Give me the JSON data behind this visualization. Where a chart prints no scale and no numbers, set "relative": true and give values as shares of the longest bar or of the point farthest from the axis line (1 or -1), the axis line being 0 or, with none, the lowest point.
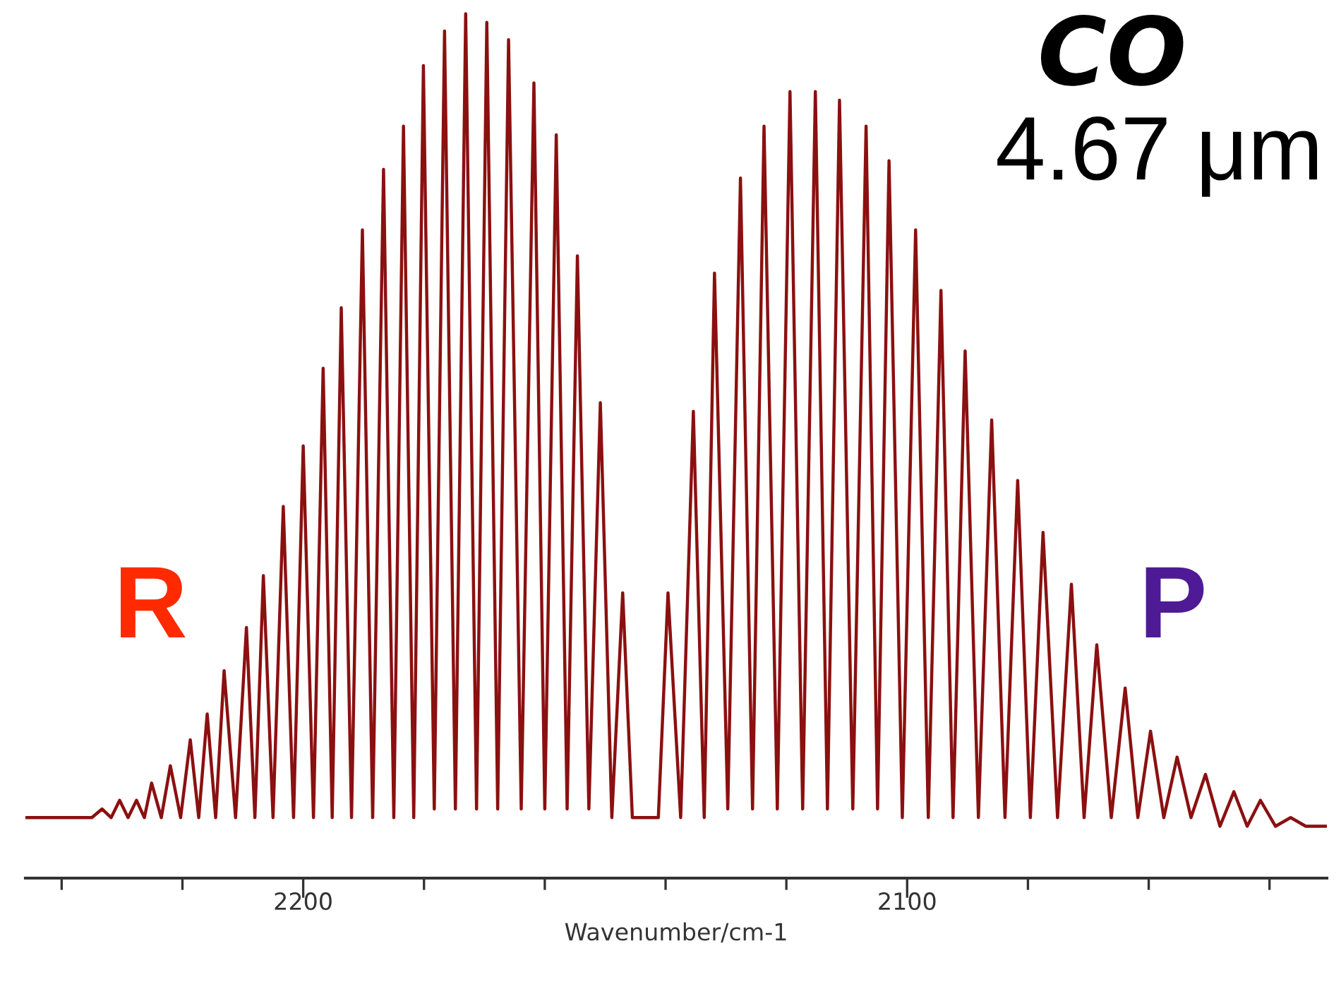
{
  "chart_data": {
    "type": "line",
    "title": "CO",
    "subtitle": "4.67 μm",
    "xlabel": "Wavenumber/cm-1",
    "relative": true,
    "xlim": [
      2246,
      2030.5
    ],
    "xticks": [
      {
        "value": 2240,
        "label": null
      },
      {
        "value": 2220,
        "label": null
      },
      2200,
      {
        "value": 2180,
        "label": null
      },
      {
        "value": 2160,
        "label": null
      },
      {
        "value": 2140,
        "label": null
      },
      {
        "value": 2120,
        "label": null
      },
      2100,
      {
        "value": 2080,
        "label": null
      },
      {
        "value": 2060,
        "label": null
      },
      {
        "value": 2040,
        "label": null
      }
    ],
    "annotations": [
      "R",
      "P"
    ],
    "x": [
      2246.0,
      2235.0,
      2233.3,
      2231.8,
      2230.4,
      2229.0,
      2227.6,
      2226.3,
      2225.1,
      2223.5,
      2222.0,
      2220.3,
      2218.7,
      2217.3,
      2215.9,
      2214.5,
      2213.1,
      2211.2,
      2209.4,
      2208.0,
      2206.6,
      2205.0,
      2203.3,
      2201.6,
      2200.0,
      2198.3,
      2196.7,
      2195.2,
      2193.7,
      2192.0,
      2190.2,
      2188.5,
      2186.7,
      2185.0,
      2183.4,
      2181.7,
      2180.1,
      2178.3,
      2176.6,
      2174.8,
      2173.1,
      2171.3,
      2169.6,
      2167.8,
      2166.0,
      2163.9,
      2161.8,
      2160.0,
      2158.1,
      2156.3,
      2154.6,
      2152.7,
      2150.8,
      2148.9,
      2147.1,
      2145.5,
      2141.2,
      2139.6,
      2137.5,
      2135.4,
      2133.6,
      2131.9,
      2129.7,
      2127.6,
      2125.6,
      2123.7,
      2121.5,
      2119.4,
      2117.3,
      2115.2,
      2113.2,
      2111.2,
      2109.0,
      2106.8,
      2104.9,
      2103.0,
      2100.8,
      2098.6,
      2096.5,
      2094.4,
      2092.4,
      2090.4,
      2088.2,
      2086.0,
      2083.8,
      2081.7,
      2079.6,
      2077.5,
      2075.1,
      2072.8,
      2070.7,
      2068.6,
      2066.2,
      2063.9,
      2061.8,
      2059.7,
      2057.5,
      2055.3,
      2053.0,
      2050.6,
      2048.2,
      2045.9,
      2043.7,
      2041.5,
      2039.0,
      2036.5,
      2034.0,
      2030.5
    ],
    "series": [
      {
        "color": "#8b1010",
        "values": [
          0.07,
          0.07,
          0.08,
          0.07,
          0.09,
          0.07,
          0.09,
          0.07,
          0.11,
          0.07,
          0.13,
          0.07,
          0.16,
          0.07,
          0.19,
          0.07,
          0.24,
          0.07,
          0.29,
          0.07,
          0.35,
          0.07,
          0.43,
          0.07,
          0.5,
          0.07,
          0.59,
          0.07,
          0.66,
          0.07,
          0.75,
          0.07,
          0.82,
          0.07,
          0.87,
          0.07,
          0.94,
          0.08,
          0.98,
          0.08,
          1.0,
          0.08,
          0.99,
          0.08,
          0.97,
          0.08,
          0.92,
          0.08,
          0.86,
          0.08,
          0.72,
          0.08,
          0.55,
          0.07,
          0.33,
          0.07,
          0.07,
          0.33,
          0.07,
          0.54,
          0.07,
          0.7,
          0.08,
          0.81,
          0.08,
          0.87,
          0.08,
          0.91,
          0.08,
          0.91,
          0.08,
          0.9,
          0.08,
          0.87,
          0.08,
          0.83,
          0.07,
          0.75,
          0.07,
          0.68,
          0.07,
          0.61,
          0.07,
          0.53,
          0.07,
          0.46,
          0.07,
          0.4,
          0.07,
          0.34,
          0.07,
          0.27,
          0.07,
          0.22,
          0.07,
          0.17,
          0.07,
          0.14,
          0.07,
          0.12,
          0.06,
          0.1,
          0.06,
          0.09,
          0.06,
          0.07,
          0.06,
          0.06
        ]
      }
    ]
  }
}
